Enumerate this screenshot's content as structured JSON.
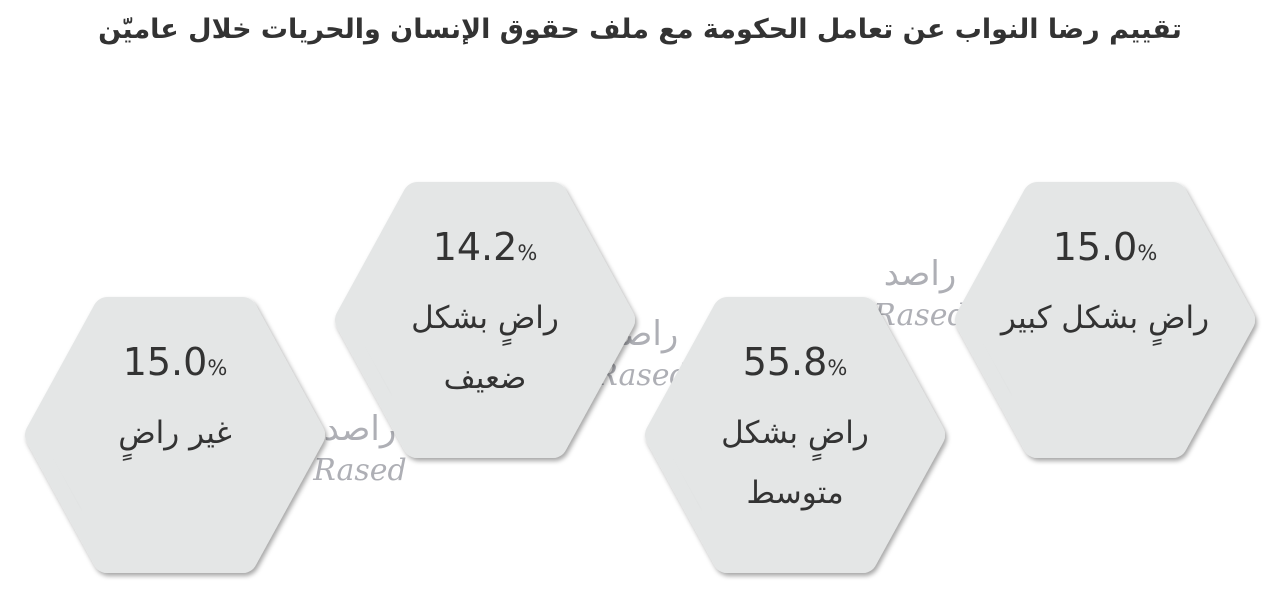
{
  "chart_data": {
    "type": "hexagons",
    "title": "تقييم رضا النواب عن تعامل الحكومة مع ملف حقوق الإنسان والحريات خلال عاميّن",
    "categories": [
      "راضٍ بشكل كبير",
      "راضٍ بشكل متوسط",
      "راضٍ بشكل ضعيف",
      "غير راضٍ"
    ],
    "values": [
      15.0,
      55.8,
      14.2,
      15.0
    ],
    "value_labels": [
      "15.0",
      "55.8",
      "14.2",
      "15.0"
    ],
    "unit": "%",
    "colors": [
      "#463f9a",
      "#2a7383",
      "#8d7a3a",
      "#c4168a"
    ],
    "watermark": [
      "راصد",
      "Rased"
    ]
  }
}
